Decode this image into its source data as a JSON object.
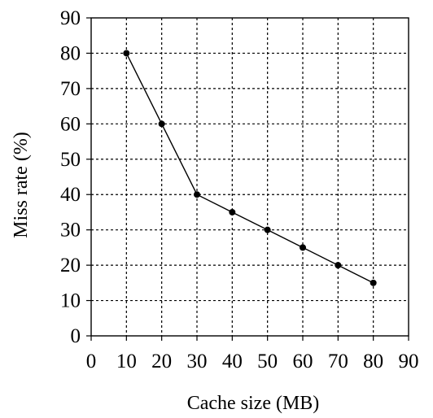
{
  "chart_data": {
    "type": "line",
    "title": "",
    "xlabel": "Cache size (MB)",
    "ylabel": "Miss rate (%)",
    "xlim": [
      0,
      90
    ],
    "ylim": [
      0,
      90
    ],
    "xticks": [
      0,
      10,
      20,
      30,
      40,
      50,
      60,
      70,
      80,
      90
    ],
    "yticks": [
      0,
      10,
      20,
      30,
      40,
      50,
      60,
      70,
      80,
      90
    ],
    "grid": true,
    "series": [
      {
        "x": [
          10,
          20,
          30,
          40,
          50,
          60,
          70,
          80
        ],
        "y": [
          80,
          60,
          40,
          35,
          30,
          25,
          20,
          15
        ]
      }
    ]
  }
}
